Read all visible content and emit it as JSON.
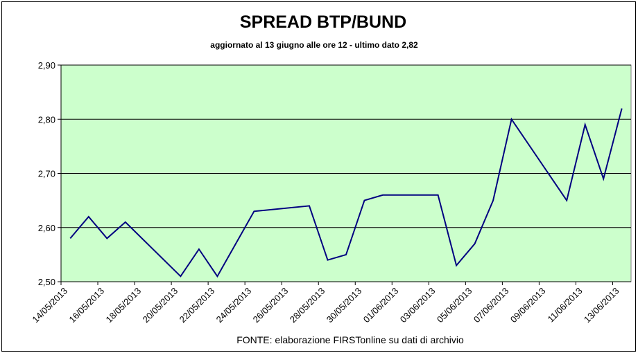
{
  "chart_data": {
    "type": "line",
    "title": "SPREAD  BTP/BUND",
    "subtitle": "aggiornato al 13 giugno alle ore 12 -  ultimo dato 2,82",
    "source": "FONTE: elaborazione FIRSTonline su dati di archivio",
    "x": [
      "14/05/2013",
      "15/05/2013",
      "16/05/2013",
      "17/05/2013",
      "20/05/2013",
      "21/05/2013",
      "22/05/2013",
      "23/05/2013",
      "24/05/2013",
      "27/05/2013",
      "28/05/2013",
      "29/05/2013",
      "30/05/2013",
      "31/05/2013",
      "03/06/2013",
      "04/06/2013",
      "05/06/2013",
      "06/06/2013",
      "07/06/2013",
      "10/06/2013",
      "11/06/2013",
      "12/06/2013",
      "13/06/2013"
    ],
    "series": [
      {
        "name": "Spread BTP/Bund",
        "color": "#000080",
        "values": [
          2.58,
          2.62,
          2.58,
          2.61,
          2.51,
          2.56,
          2.51,
          2.57,
          2.63,
          2.64,
          2.54,
          2.55,
          2.65,
          2.66,
          2.66,
          2.53,
          2.57,
          2.65,
          2.8,
          2.65,
          2.79,
          2.69,
          2.82
        ]
      }
    ],
    "xlim": [
      "14/05/2013",
      "14/06/2013"
    ],
    "xticks": [
      "14/05/2013",
      "16/05/2013",
      "18/05/2013",
      "20/05/2013",
      "22/05/2013",
      "24/05/2013",
      "26/05/2013",
      "28/05/2013",
      "30/05/2013",
      "01/06/2013",
      "03/06/2013",
      "05/06/2013",
      "07/06/2013",
      "09/06/2013",
      "11/06/2013",
      "13/06/2013"
    ],
    "ylim": [
      2.5,
      2.9
    ],
    "yticks": [
      {
        "value": 2.5,
        "label": "2,50"
      },
      {
        "value": 2.6,
        "label": "2,60"
      },
      {
        "value": 2.7,
        "label": "2,70"
      },
      {
        "value": 2.8,
        "label": "2,80"
      },
      {
        "value": 2.9,
        "label": "2,90"
      }
    ],
    "grid": true,
    "plot_background": "#ccffcc"
  }
}
